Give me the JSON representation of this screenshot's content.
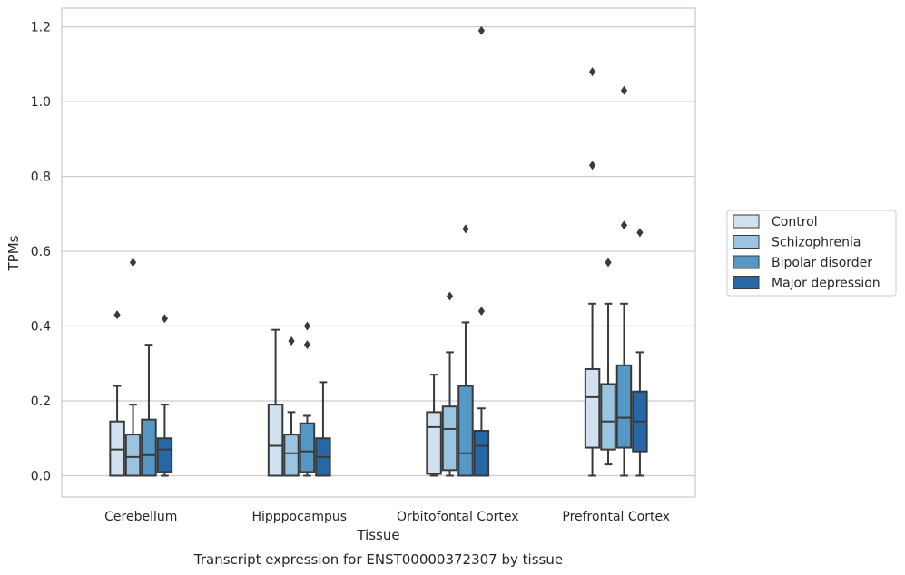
{
  "chart_data": {
    "type": "box",
    "xlabel": "Tissue",
    "ylabel": "TPMs",
    "caption": "Transcript expression for ENST00000372307 by tissue",
    "ylim": [
      -0.057,
      1.25
    ],
    "yticks": [
      0.0,
      0.2,
      0.4,
      0.6,
      0.8,
      1.0,
      1.2
    ],
    "ytick_labels": [
      "0.0",
      "0.2",
      "0.4",
      "0.6",
      "0.8",
      "1.0",
      "1.2"
    ],
    "grid": "horizontal",
    "legend_position": "right",
    "categories": [
      "Cerebellum",
      "Hipppocampus",
      "Orbitofontal Cortex",
      "Prefrontal Cortex"
    ],
    "series": [
      {
        "name": "Control",
        "color": "#d1e1f0",
        "boxes": [
          {
            "whislo": 0.0,
            "q1": 0.0,
            "med": 0.07,
            "q3": 0.145,
            "whishi": 0.24,
            "fliers": [
              0.43
            ]
          },
          {
            "whislo": 0.0,
            "q1": 0.0,
            "med": 0.08,
            "q3": 0.19,
            "whishi": 0.39,
            "fliers": []
          },
          {
            "whislo": 0.0,
            "q1": 0.005,
            "med": 0.13,
            "q3": 0.17,
            "whishi": 0.27,
            "fliers": []
          },
          {
            "whislo": 0.0,
            "q1": 0.075,
            "med": 0.21,
            "q3": 0.285,
            "whishi": 0.46,
            "fliers": [
              0.83,
              1.08
            ]
          }
        ]
      },
      {
        "name": "Schizophrenia",
        "color": "#9ac4df",
        "boxes": [
          {
            "whislo": 0.0,
            "q1": 0.0,
            "med": 0.05,
            "q3": 0.11,
            "whishi": 0.19,
            "fliers": [
              0.57
            ]
          },
          {
            "whislo": 0.0,
            "q1": 0.0,
            "med": 0.06,
            "q3": 0.11,
            "whishi": 0.17,
            "fliers": [
              0.36
            ]
          },
          {
            "whislo": 0.0,
            "q1": 0.015,
            "med": 0.125,
            "q3": 0.185,
            "whishi": 0.33,
            "fliers": [
              0.48
            ]
          },
          {
            "whislo": 0.03,
            "q1": 0.07,
            "med": 0.145,
            "q3": 0.245,
            "whishi": 0.46,
            "fliers": [
              0.57
            ]
          }
        ]
      },
      {
        "name": "Bipolar disorder",
        "color": "#5598c6",
        "boxes": [
          {
            "whislo": 0.0,
            "q1": 0.0,
            "med": 0.055,
            "q3": 0.15,
            "whishi": 0.35,
            "fliers": []
          },
          {
            "whislo": 0.0,
            "q1": 0.01,
            "med": 0.065,
            "q3": 0.14,
            "whishi": 0.16,
            "fliers": [
              0.35,
              0.4
            ]
          },
          {
            "whislo": 0.0,
            "q1": 0.0,
            "med": 0.06,
            "q3": 0.24,
            "whishi": 0.41,
            "fliers": [
              0.66
            ]
          },
          {
            "whislo": 0.0,
            "q1": 0.075,
            "med": 0.155,
            "q3": 0.295,
            "whishi": 0.46,
            "fliers": [
              0.67,
              1.03
            ]
          }
        ]
      },
      {
        "name": "Major depression",
        "color": "#2767a6",
        "boxes": [
          {
            "whislo": 0.0,
            "q1": 0.01,
            "med": 0.07,
            "q3": 0.1,
            "whishi": 0.19,
            "fliers": [
              0.42
            ]
          },
          {
            "whislo": 0.0,
            "q1": 0.0,
            "med": 0.05,
            "q3": 0.1,
            "whishi": 0.25,
            "fliers": []
          },
          {
            "whislo": 0.0,
            "q1": 0.0,
            "med": 0.08,
            "q3": 0.12,
            "whishi": 0.18,
            "fliers": [
              0.44,
              1.19
            ]
          },
          {
            "whislo": 0.0,
            "q1": 0.065,
            "med": 0.145,
            "q3": 0.225,
            "whishi": 0.33,
            "fliers": [
              0.65
            ]
          }
        ]
      }
    ]
  }
}
